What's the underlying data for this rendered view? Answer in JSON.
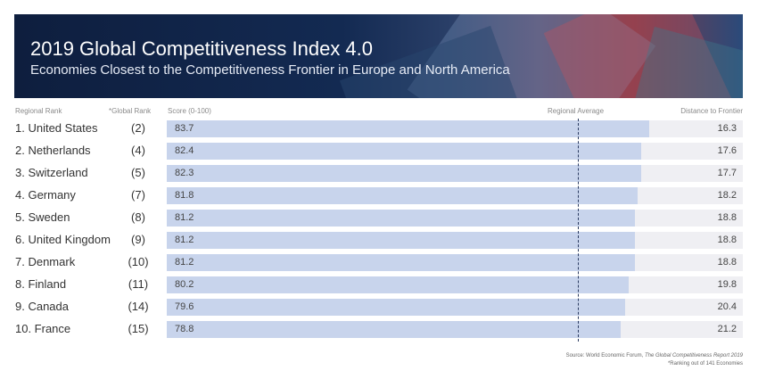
{
  "header": {
    "title": "2019 Global Competitiveness Index 4.0",
    "subtitle": "Economies Closest to the Competitiveness Frontier in Europe and North America"
  },
  "columns": {
    "regional_rank": "Regional Rank",
    "global_rank": "*Global Rank",
    "score": "Score (0-100)",
    "regional_average": "Regional Average",
    "distance": "Distance to Frontier"
  },
  "chart_data": {
    "type": "bar",
    "orientation": "horizontal",
    "xlim": [
      0,
      100
    ],
    "regional_average": 71.4,
    "colors": {
      "bar": "#c8d4ec",
      "track": "#efeff3",
      "average_line": "#2a3a60"
    },
    "rows": [
      {
        "label": "1. United States",
        "global_rank": "(2)",
        "score": "83.7",
        "distance": "16.3"
      },
      {
        "label": "2. Netherlands",
        "global_rank": "(4)",
        "score": "82.4",
        "distance": "17.6"
      },
      {
        "label": "3. Switzerland",
        "global_rank": "(5)",
        "score": "82.3",
        "distance": "17.7"
      },
      {
        "label": "4. Germany",
        "global_rank": "(7)",
        "score": "81.8",
        "distance": "18.2"
      },
      {
        "label": "5. Sweden",
        "global_rank": "(8)",
        "score": "81.2",
        "distance": "18.8"
      },
      {
        "label": "6. United Kingdom",
        "global_rank": "(9)",
        "score": "81.2",
        "distance": "18.8"
      },
      {
        "label": "7. Denmark",
        "global_rank": "(10)",
        "score": "81.2",
        "distance": "18.8"
      },
      {
        "label": "8. Finland",
        "global_rank": "(11)",
        "score": "80.2",
        "distance": "19.8"
      },
      {
        "label": "9. Canada",
        "global_rank": "(14)",
        "score": "79.6",
        "distance": "20.4"
      },
      {
        "label": "10. France",
        "global_rank": "(15)",
        "score": "78.8",
        "distance": "21.2"
      }
    ]
  },
  "footer": {
    "source_prefix": "Source:  World Economic Forum, ",
    "source_title": "The Global Competitiveness Report 2019",
    "note": "*Ranking out of 141 Economies"
  }
}
